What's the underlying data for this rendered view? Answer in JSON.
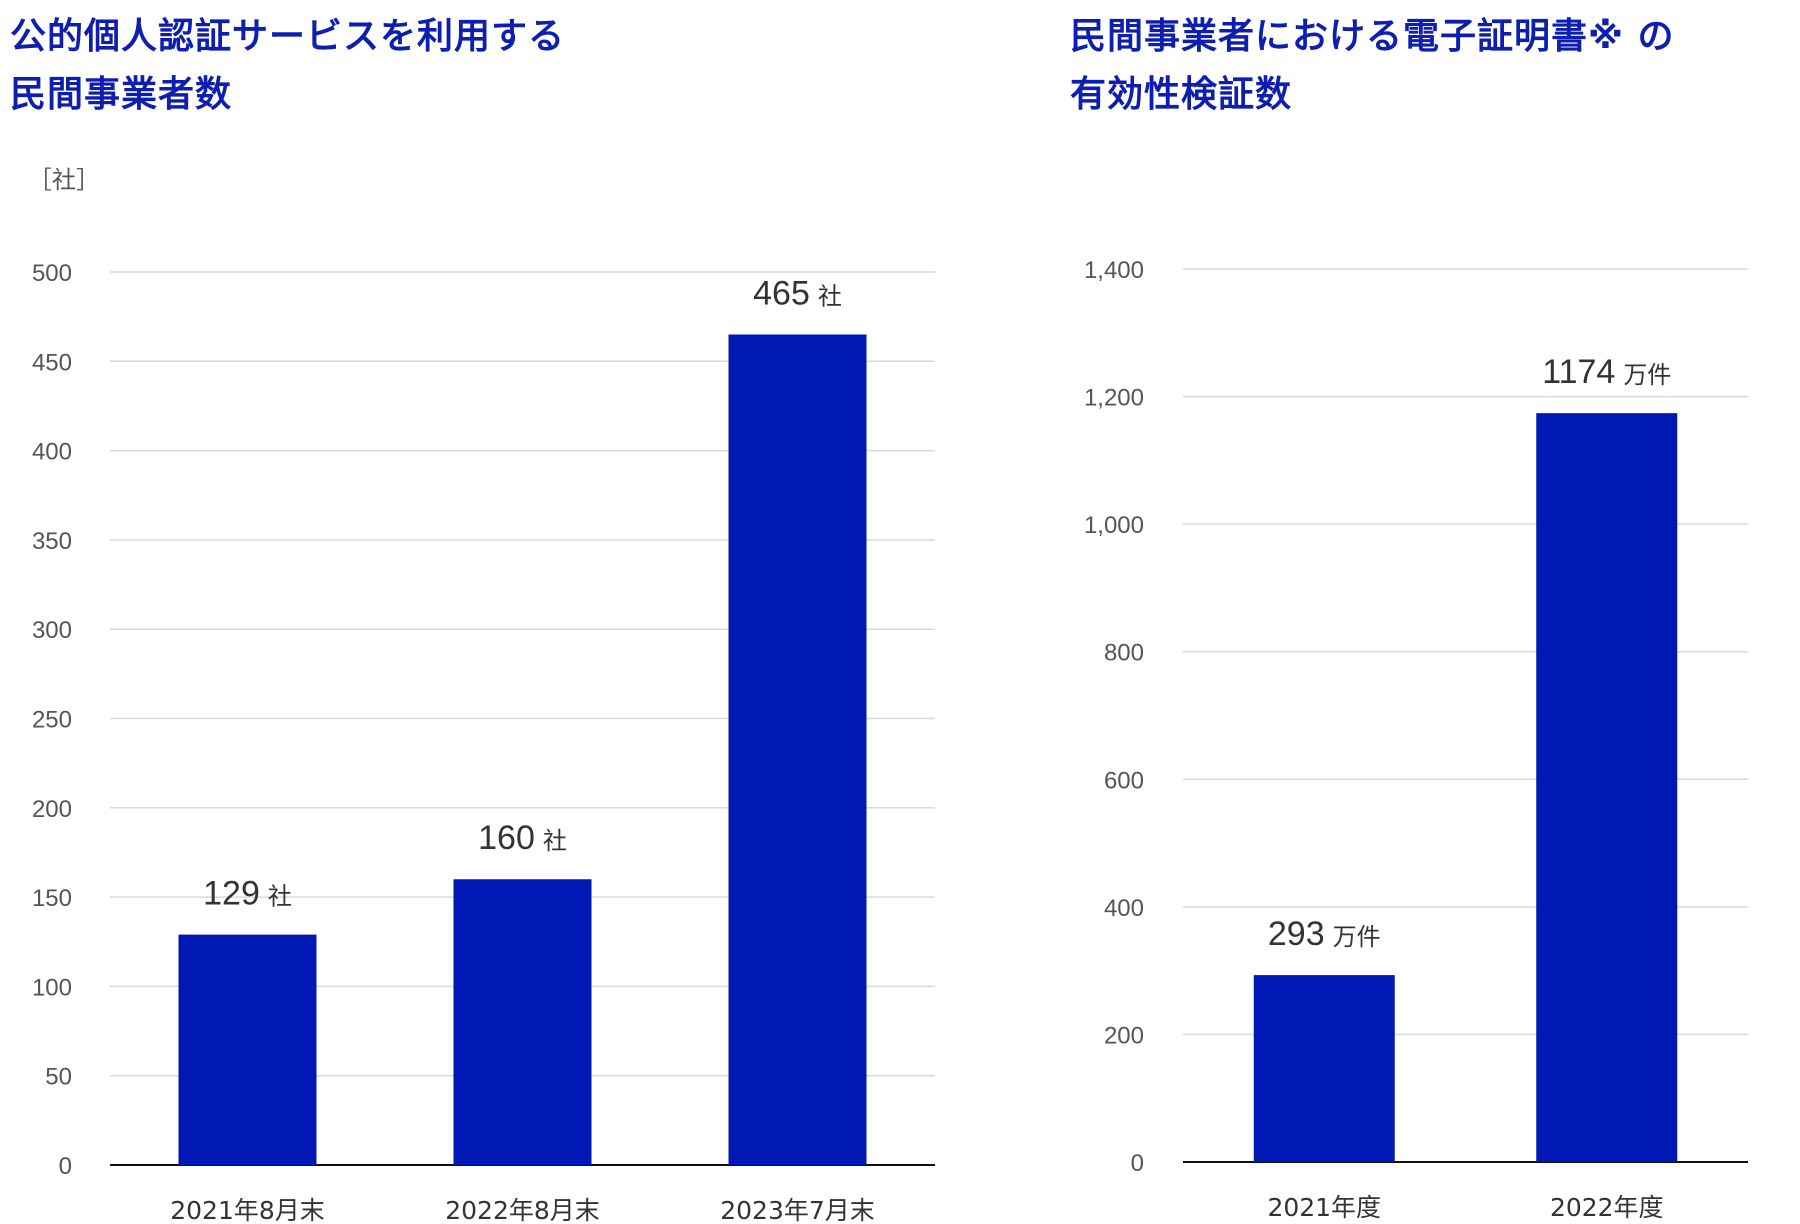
{
  "chart_data": [
    {
      "type": "bar",
      "title_lines": [
        "公的個人認証サービスを利用する",
        "民間事業者数"
      ],
      "unit_label": "［社］",
      "categories": [
        "2021年8月末",
        "2022年8月末",
        "2023年7月末"
      ],
      "values": [
        129,
        160,
        465
      ],
      "value_unit": "社",
      "ylim": [
        0,
        500
      ],
      "yticks": [
        "0",
        "50",
        "100",
        "150",
        "200",
        "250",
        "300",
        "350",
        "400",
        "450",
        "500"
      ],
      "bar_color": "#0019b4",
      "grid": true
    },
    {
      "type": "bar",
      "title_lines": [
        "民間事業者における電子証明書※ の",
        "有効性検証数"
      ],
      "categories": [
        "2021年度",
        "2022年度"
      ],
      "values": [
        293,
        1174
      ],
      "value_unit": "万件",
      "ylim": [
        0,
        1400
      ],
      "yticks": [
        "0",
        "200",
        "400",
        "600",
        "800",
        "1,000",
        "1,200",
        "1,400"
      ],
      "bar_color": "#0019b4",
      "grid": true
    }
  ]
}
